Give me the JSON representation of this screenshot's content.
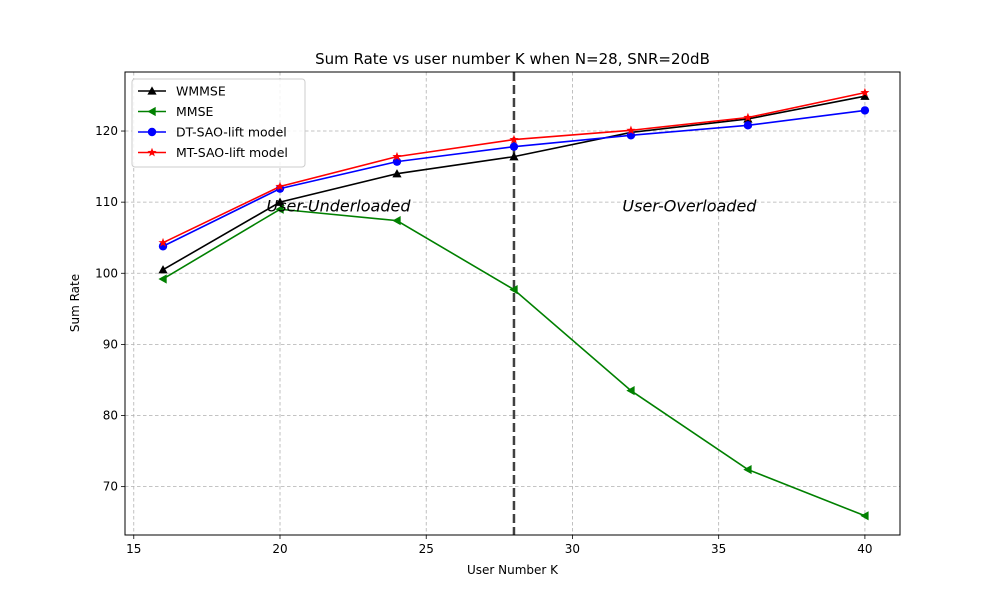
{
  "chart_data": {
    "type": "line",
    "title": "Sum Rate vs user number K when N=28, SNR=20dB",
    "xlabel": "User Number K",
    "ylabel": "Sum Rate",
    "xlim": [
      14.7,
      41.2
    ],
    "ylim": [
      63.2,
      128.3
    ],
    "xticks": [
      15,
      20,
      25,
      30,
      35,
      40
    ],
    "yticks": [
      70,
      80,
      90,
      100,
      110,
      120
    ],
    "grid": true,
    "legend_position": "upper-left",
    "x": [
      16,
      20,
      24,
      28,
      32,
      36,
      40
    ],
    "series": [
      {
        "name": "WMMSE",
        "color": "#000000",
        "marker": "triangle-up",
        "values": [
          100.5,
          110.0,
          114.0,
          116.4,
          119.8,
          121.7,
          124.9
        ]
      },
      {
        "name": "MMSE",
        "color": "#008000",
        "marker": "triangle-left",
        "values": [
          99.2,
          109.0,
          107.4,
          97.7,
          83.5,
          72.4,
          65.9
        ]
      },
      {
        "name": "DT-SAO-lift model",
        "color": "#0000ff",
        "marker": "circle",
        "values": [
          103.8,
          111.9,
          115.7,
          117.8,
          119.4,
          120.8,
          122.9
        ]
      },
      {
        "name": "MT-SAO-lift model",
        "color": "#ff0000",
        "marker": "star",
        "values": [
          104.3,
          112.2,
          116.4,
          118.8,
          120.1,
          121.9,
          125.4
        ]
      }
    ],
    "vline": {
      "x": 28,
      "color": "#404040",
      "style": "dashed"
    },
    "annotations": [
      {
        "text": "User-Underloaded",
        "x": 22.0,
        "y": 109.5
      },
      {
        "text": "User-Overloaded",
        "x": 34.0,
        "y": 109.5
      }
    ]
  }
}
